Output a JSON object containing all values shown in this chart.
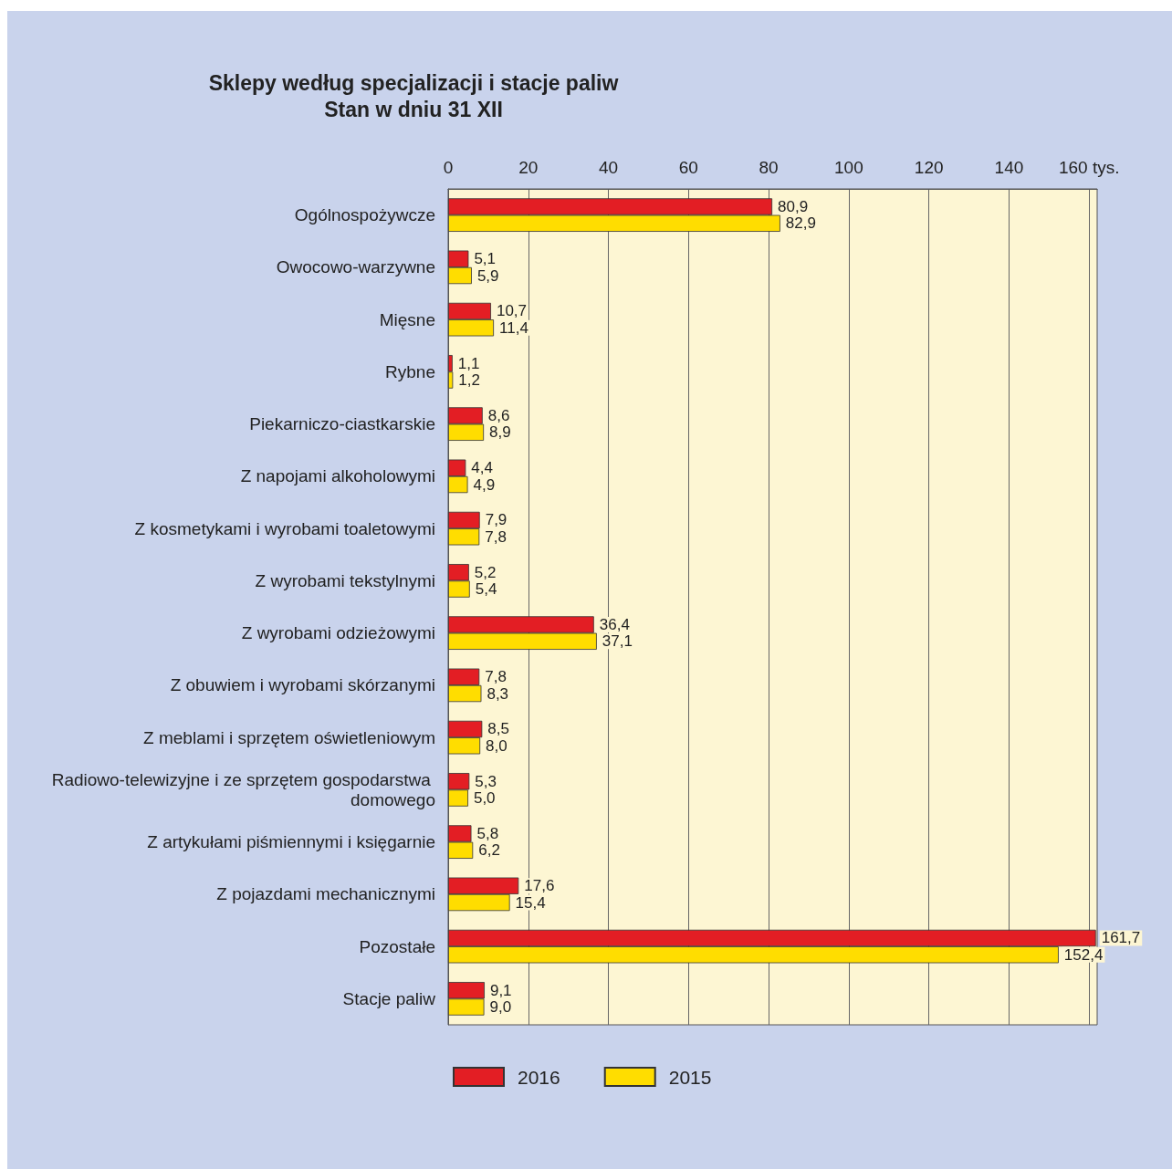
{
  "chart_data": {
    "type": "bar",
    "orientation": "horizontal",
    "title": "Sklepy według specjalizacji i stacje paliw",
    "subtitle": "Stan w dniu 31 XII",
    "categories": [
      "Ogólnospożywcze",
      "Owocowo-warzywne",
      "Mięsne",
      "Rybne",
      "Piekarniczo-ciastkarskie",
      "Z napojami alkoholowymi",
      "Z kosmetykami i wyrobami toaletowymi",
      "Z wyrobami tekstylnymi",
      "Z wyrobami odzieżowymi",
      "Z obuwiem i wyrobami skórzanymi",
      "Z meblami i sprzętem oświetleniowym",
      "Radiowo-telewizyjne i ze sprzętem gospodarstwa domowego",
      "Z artykułami piśmiennymi i księgarnie",
      "Z pojazdami mechanicznymi",
      "Pozostałe",
      "Stacje paliw"
    ],
    "series": [
      {
        "name": "2016",
        "color": "#e31e24",
        "values": [
          80.9,
          5.1,
          10.7,
          1.1,
          8.6,
          4.4,
          7.9,
          5.2,
          36.4,
          7.8,
          8.5,
          5.3,
          5.8,
          17.6,
          161.7,
          9.1
        ],
        "value_labels": [
          "80,9",
          "5,1",
          "10,7",
          "1,1",
          "8,6",
          "4,4",
          "7,9",
          "5,2",
          "36,4",
          "7,8",
          "8,5",
          "5,3",
          "5,8",
          "17,6",
          "161,7",
          "9,1"
        ]
      },
      {
        "name": "2015",
        "color": "#ffdd00",
        "values": [
          82.9,
          5.9,
          11.4,
          1.2,
          8.9,
          4.9,
          7.8,
          5.4,
          37.1,
          8.3,
          8.0,
          5.0,
          6.2,
          15.4,
          152.4,
          9.0
        ],
        "value_labels": [
          "82,9",
          "5,9",
          "11,4",
          "1,2",
          "8,9",
          "4,9",
          "7,8",
          "5,4",
          "37,1",
          "8,3",
          "8,0",
          "5,0",
          "6,2",
          "15,4",
          "152,4",
          "9,0"
        ]
      }
    ],
    "xlim": [
      0,
      162
    ],
    "xticks": [
      0,
      20,
      40,
      60,
      80,
      100,
      120,
      140,
      {
        "value": 160,
        "label": "160 tys."
      }
    ],
    "grid": "x",
    "legend": "bottom"
  }
}
